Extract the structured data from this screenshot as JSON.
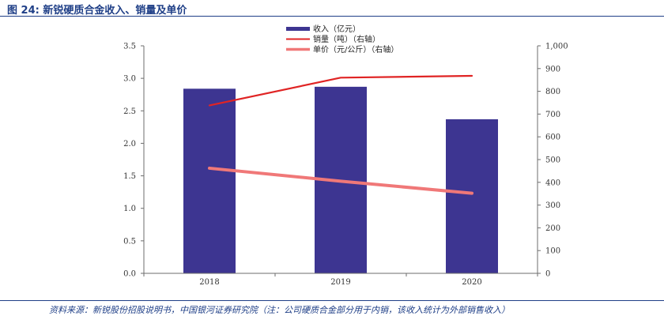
{
  "page": {
    "title": "图 24: 新锐硬质合金收入、销量及单价",
    "source": "资料来源：新锐股份招股说明书，中国银河证券研究院（注：公司硬质合金部分用于内销，该收入统计为外部销售收入）"
  },
  "colors": {
    "accent": "#1f3f87",
    "bar": "#3d3591",
    "volume_line": "#e02424",
    "price_line": "#f07878",
    "axis": "#6e6e6e"
  },
  "chart_data": {
    "type": "bar",
    "categories": [
      "2018",
      "2019",
      "2020"
    ],
    "series": [
      {
        "name": "收入（亿元）",
        "type": "bar",
        "axis": "left",
        "values": [
          2.84,
          2.87,
          2.37
        ],
        "color": "#3d3591"
      },
      {
        "name": "销量（吨）（右轴）",
        "type": "line",
        "axis": "right",
        "values": [
          738,
          860,
          868
        ],
        "color": "#e02424"
      },
      {
        "name": "单价（元/公斤）（右轴）",
        "type": "line",
        "axis": "right",
        "values": [
          462,
          405,
          352
        ],
        "color": "#f07878"
      }
    ],
    "left_axis": {
      "ylim": [
        0,
        3.5
      ],
      "ticks": [
        "0.0",
        "0.5",
        "1.0",
        "1.5",
        "2.0",
        "2.5",
        "3.0",
        "3.5"
      ]
    },
    "right_axis": {
      "ylim": [
        0,
        1000
      ],
      "ticks": [
        "0",
        "100",
        "200",
        "300",
        "400",
        "500",
        "600",
        "700",
        "800",
        "900",
        "1,000"
      ]
    },
    "legend_position": "top-center",
    "grid": false
  }
}
